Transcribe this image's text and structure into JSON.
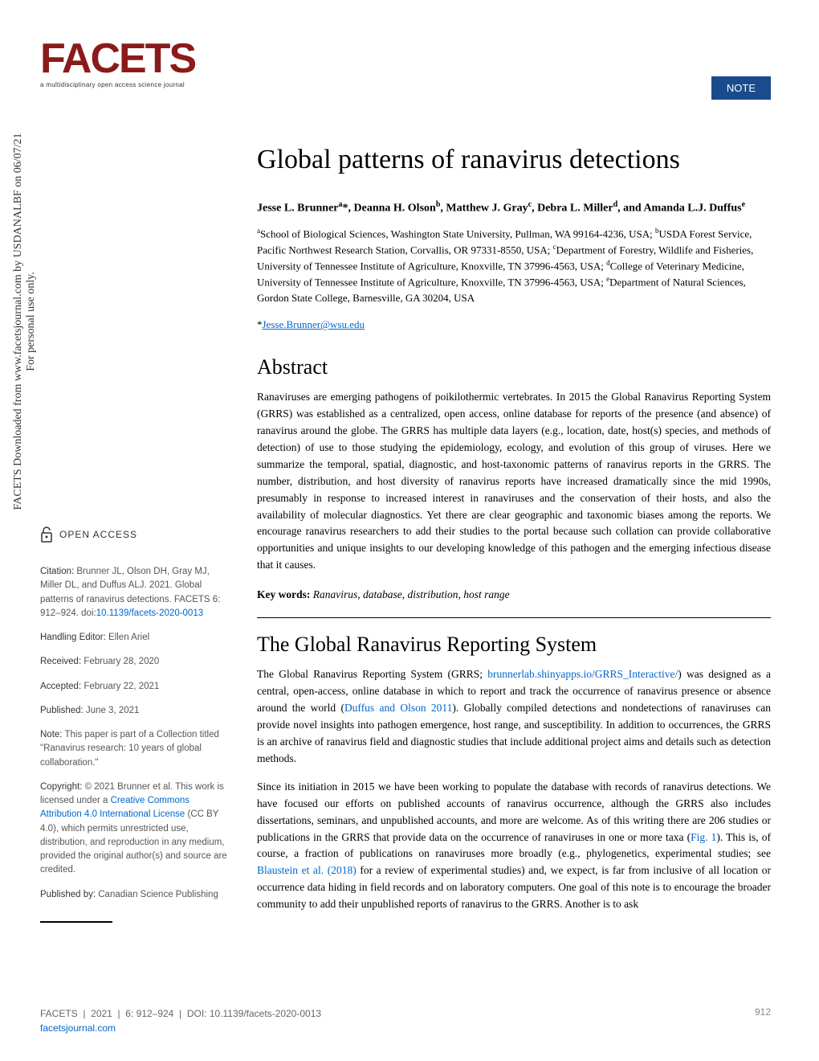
{
  "journal": {
    "logo_text": "FACETS",
    "tagline": "a multidisciplinary open access science journal",
    "article_type": "NOTE"
  },
  "watermark": {
    "line1": "FACETS Downloaded from www.facetsjournal.com by USDANALBF on 06/07/21",
    "line2": "For personal use only."
  },
  "article": {
    "title": "Global patterns of ranavirus detections",
    "authors_html": "Jesse L. Brunner<sup>a</sup>*, Deanna H. Olson<sup>b</sup>, Matthew J. Gray<sup>c</sup>, Debra L. Miller<sup>d</sup>, and Amanda L.J. Duffus<sup>e</sup>",
    "affiliations_html": "<sup>a</sup>School of Biological Sciences, Washington State University, Pullman, WA 99164-4236, USA; <sup>b</sup>USDA Forest Service, Pacific Northwest Research Station, Corvallis, OR 97331-8550, USA; <sup>c</sup>Department of Forestry, Wildlife and Fisheries, University of Tennessee Institute of Agriculture, Knoxville, TN 37996-4563, USA; <sup>d</sup>College of Veterinary Medicine, University of Tennessee Institute of Agriculture, Knoxville, TN 37996-4563, USA; <sup>e</sup>Department of Natural Sciences, Gordon State College, Barnesville, GA 30204, USA",
    "corresponding_email": "Jesse.Brunner@wsu.edu"
  },
  "abstract": {
    "heading": "Abstract",
    "text": "Ranaviruses are emerging pathogens of poikilothermic vertebrates. In 2015 the Global Ranavirus Reporting System (GRRS) was established as a centralized, open access, online database for reports of the presence (and absence) of ranavirus around the globe. The GRRS has multiple data layers (e.g., location, date, host(s) species, and methods of detection) of use to those studying the epidemiology, ecology, and evolution of this group of viruses. Here we summarize the temporal, spatial, diagnostic, and host-taxonomic patterns of ranavirus reports in the GRRS. The number, distribution, and host diversity of ranavirus reports have increased dramatically since the mid 1990s, presumably in response to increased interest in ranaviruses and the conservation of their hosts, and also the availability of molecular diagnostics. Yet there are clear geographic and taxonomic biases among the reports. We encourage ranavirus researchers to add their studies to the portal because such collation can provide collaborative opportunities and unique insights to our developing knowledge of this pathogen and the emerging infectious disease that it causes.",
    "keywords_label": "Key words:",
    "keywords_text": " Ranavirus, database, distribution, host range"
  },
  "section1": {
    "heading": "The Global Ranavirus Reporting System",
    "para1_pre": "The Global Ranavirus Reporting System (GRRS; ",
    "para1_link1": "brunnerlab.shinyapps.io/GRRS_Interactive/",
    "para1_mid1": ") was designed as a central, open-access, online database in which to report and track the occurrence of ranavirus presence or absence around the world (",
    "para1_link2": "Duffus and Olson 2011",
    "para1_post": "). Globally compiled detections and nondetections of ranaviruses can provide novel insights into pathogen emergence, host range, and susceptibility. In addition to occurrences, the GRRS is an archive of ranavirus field and diagnostic studies that include additional project aims and details such as detection methods.",
    "para2_pre": "Since its initiation in 2015 we have been working to populate the database with records of ranavirus detections. We have focused our efforts on published accounts of ranavirus occurrence, although the GRRS also includes dissertations, seminars, and unpublished accounts, and more are welcome. As of this writing there are 206 studies or publications in the GRRS that provide data on the occurrence of ranaviruses in one or more taxa (",
    "para2_link1": "Fig. 1",
    "para2_mid1": "). This is, of course, a fraction of publications on ranaviruses more broadly (e.g., phylogenetics, experimental studies; see ",
    "para2_link2": "Blaustein et al. (2018)",
    "para2_post": " for a review of experimental studies) and, we expect, is far from inclusive of all location or occurrence data hiding in field records and on laboratory computers. One goal of this note is to encourage the broader community to add their unpublished reports of ranavirus to the GRRS. Another is to ask"
  },
  "sidebar": {
    "open_access": "OPEN ACCESS",
    "citation_label": "Citation:",
    "citation_text": " Brunner JL, Olson DH, Gray MJ, Miller DL, and Duffus ALJ. 2021. Global patterns of ranavirus detections. FACETS 6: 912–924. doi:",
    "citation_doi": "10.1139/facets-2020-0013",
    "handling_editor_label": "Handling Editor:",
    "handling_editor": " Ellen Ariel",
    "received_label": "Received:",
    "received": " February 28, 2020",
    "accepted_label": "Accepted:",
    "accepted": " February 22, 2021",
    "published_label": "Published:",
    "published": " June 3, 2021",
    "note_label": "Note:",
    "note_text": " This paper is part of a Collection titled \"Ranavirus research: 10 years of global collaboration.\"",
    "copyright_label": "Copyright:",
    "copyright_text_pre": " © 2021 Brunner et al. This work is licensed under a ",
    "copyright_link": "Creative Commons Attribution 4.0 International License",
    "copyright_text_post": " (CC BY 4.0), which permits unrestricted use, distribution, and reproduction in any medium, provided the original author(s) and source are credited.",
    "published_by_label": "Published by:",
    "published_by": " Canadian Science Publishing"
  },
  "footer": {
    "journal": "FACETS",
    "year_vol": "2021",
    "issue_pages": "6: 912–924",
    "doi_label": "DOI:",
    "doi": "10.1139/facets-2020-0013",
    "url": "facetsjournal.com",
    "page_number": "912"
  },
  "colors": {
    "logo": "#8b1a1a",
    "badge_bg": "#1a4b8c",
    "link": "#0066cc",
    "text": "#000000",
    "sidebar_text": "#555555"
  }
}
